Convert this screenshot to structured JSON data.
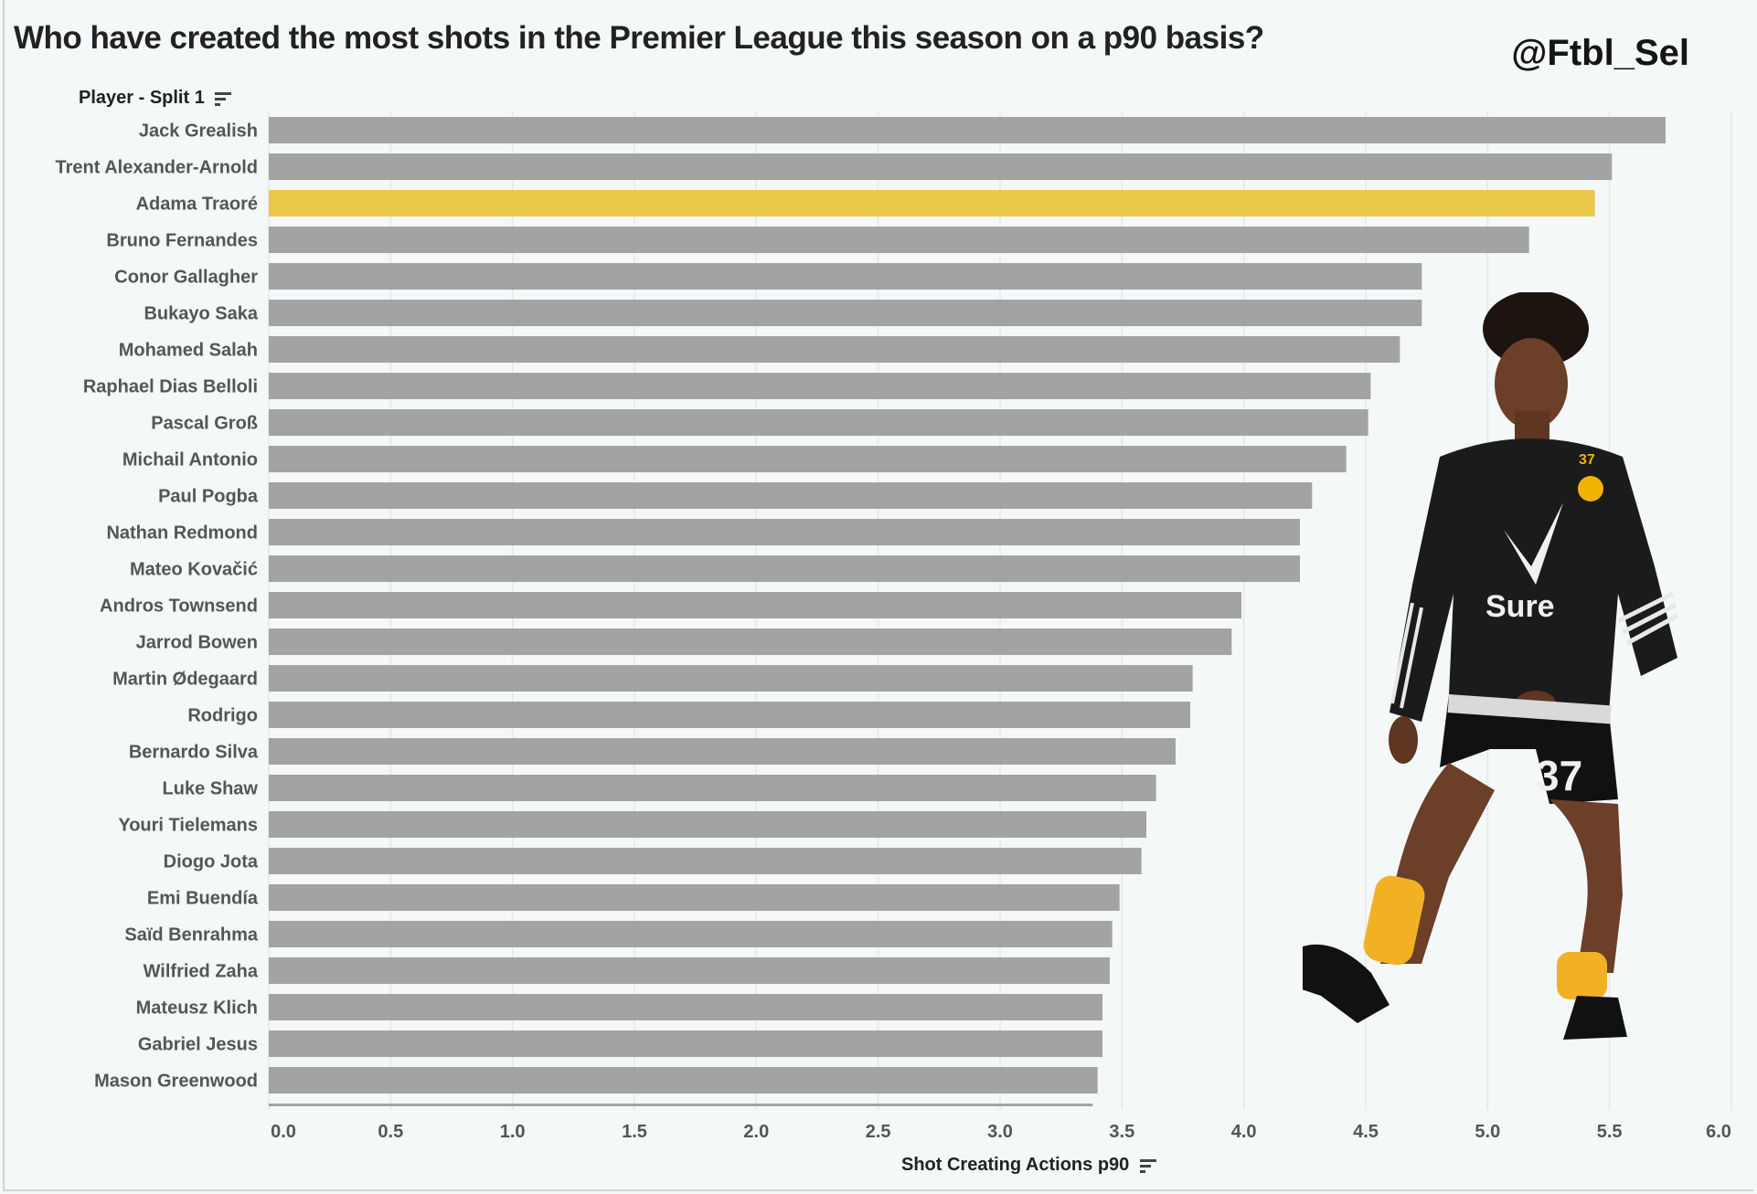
{
  "title": "Who have created the most shots in the Premier League this season on a p90 basis?",
  "handle": "@Ftbl_Sel",
  "row_header": "Player - Split 1",
  "colors": {
    "bar": "#a3a3a3",
    "highlight": "#ecc84a",
    "grid": "#e4e8e8",
    "text": "#555555"
  },
  "chart_data": {
    "type": "bar",
    "orientation": "horizontal",
    "title": "Who have created the most shots in the Premier League this season on a p90 basis?",
    "xlabel": "Shot Creating Actions p90",
    "ylabel": "Player - Split 1",
    "xlim": [
      0,
      6
    ],
    "xticks": [
      "0.0",
      "0.5",
      "1.0",
      "1.5",
      "2.0",
      "2.5",
      "3.0",
      "3.5",
      "4.0",
      "4.5",
      "5.0",
      "5.5",
      "6.0"
    ],
    "grid": true,
    "highlight": "Adama Traoré",
    "categories": [
      "Jack Grealish",
      "Trent Alexander-Arnold",
      "Adama Traoré",
      "Bruno Fernandes",
      "Conor Gallagher",
      "Bukayo Saka",
      "Mohamed Salah",
      "Raphael Dias Belloli",
      "Pascal Groß",
      "Michail Antonio",
      "Paul Pogba",
      "Nathan Redmond",
      "Mateo Kovačić",
      "Andros Townsend",
      "Jarrod Bowen",
      "Martin Ødegaard",
      "Rodrigo",
      "Bernardo Silva",
      "Luke Shaw",
      "Youri Tielemans",
      "Diogo Jota",
      "Emi Buendía",
      "Saïd Benrahma",
      "Wilfried Zaha",
      "Mateusz Klich",
      "Gabriel Jesus",
      "Mason Greenwood"
    ],
    "values": [
      5.73,
      5.51,
      5.44,
      5.17,
      4.73,
      4.73,
      4.64,
      4.52,
      4.51,
      4.42,
      4.28,
      4.23,
      4.23,
      3.99,
      3.95,
      3.79,
      3.78,
      3.72,
      3.64,
      3.6,
      3.58,
      3.49,
      3.46,
      3.45,
      3.42,
      3.42,
      3.4
    ],
    "partial_last_bar": 3.38
  },
  "photo": {
    "number": "37",
    "sponsor": "Sure"
  }
}
